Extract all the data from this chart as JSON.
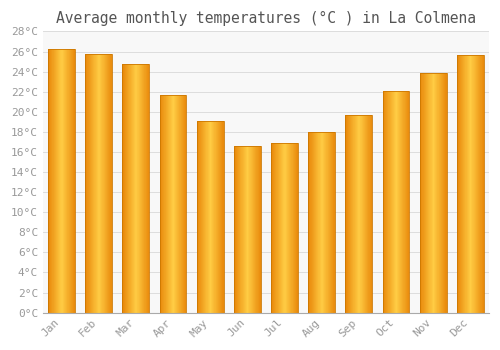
{
  "title": "Average monthly temperatures (°C ) in La Colmena",
  "months": [
    "Jan",
    "Feb",
    "Mar",
    "Apr",
    "May",
    "Jun",
    "Jul",
    "Aug",
    "Sep",
    "Oct",
    "Nov",
    "Dec"
  ],
  "values": [
    26.3,
    25.8,
    24.8,
    21.7,
    19.1,
    16.6,
    16.9,
    18.0,
    19.7,
    22.1,
    23.9,
    25.7
  ],
  "bar_color_center": "#FFCC44",
  "bar_color_edge": "#E8880A",
  "bar_outline_color": "#CC7700",
  "background_color": "#FFFFFF",
  "plot_bg_color": "#F8F8F8",
  "grid_color": "#DDDDDD",
  "text_color": "#999999",
  "title_color": "#555555",
  "ylim": [
    0,
    28
  ],
  "ytick_step": 2,
  "title_fontsize": 10.5,
  "tick_fontsize": 8,
  "bar_width": 0.72
}
